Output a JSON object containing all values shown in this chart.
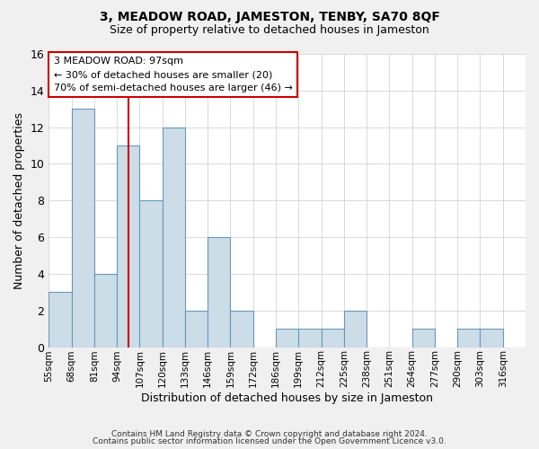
{
  "title": "3, MEADOW ROAD, JAMESTON, TENBY, SA70 8QF",
  "subtitle": "Size of property relative to detached houses in Jameston",
  "xlabel": "Distribution of detached houses by size in Jameston",
  "ylabel": "Number of detached properties",
  "footer_lines": [
    "Contains HM Land Registry data © Crown copyright and database right 2024.",
    "Contains public sector information licensed under the Open Government Licence v3.0."
  ],
  "bin_labels": [
    "55sqm",
    "68sqm",
    "81sqm",
    "94sqm",
    "107sqm",
    "120sqm",
    "133sqm",
    "146sqm",
    "159sqm",
    "172sqm",
    "186sqm",
    "199sqm",
    "212sqm",
    "225sqm",
    "238sqm",
    "251sqm",
    "264sqm",
    "277sqm",
    "290sqm",
    "303sqm",
    "316sqm"
  ],
  "bar_values": [
    3,
    13,
    4,
    11,
    8,
    12,
    2,
    6,
    2,
    0,
    1,
    1,
    1,
    2,
    0,
    0,
    1,
    0,
    1,
    1,
    0
  ],
  "bar_color": "#ccdde8",
  "bar_edge_color": "#6699bb",
  "vline_x": 3.5,
  "vline_color": "#cc0000",
  "annotation_text_line1": "3 MEADOW ROAD: 97sqm",
  "annotation_text_line2": "← 30% of detached houses are smaller (20)",
  "annotation_text_line3": "70% of semi-detached houses are larger (46) →",
  "ylim": [
    0,
    16
  ],
  "yticks": [
    0,
    2,
    4,
    6,
    8,
    10,
    12,
    14,
    16
  ],
  "background_color": "#f0f0f0",
  "plot_bg_color": "#ffffff",
  "grid_color": "#cccccc"
}
